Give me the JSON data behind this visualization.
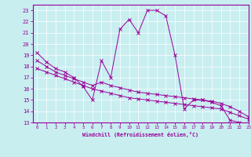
{
  "xlabel": "Windchill (Refroidissement éolien,°C)",
  "background_color": "#c8eef0",
  "line_color": "#990099",
  "grid_color": "#ffffff",
  "xlim": [
    -0.5,
    23
  ],
  "ylim": [
    13,
    23.5
  ],
  "yticks": [
    13,
    14,
    15,
    16,
    17,
    18,
    19,
    20,
    21,
    22,
    23
  ],
  "xticks": [
    0,
    1,
    2,
    3,
    4,
    5,
    6,
    7,
    8,
    9,
    10,
    11,
    12,
    13,
    14,
    15,
    16,
    17,
    18,
    19,
    20,
    21,
    22,
    23
  ],
  "series1_x": [
    0,
    1,
    2,
    3,
    4,
    5,
    6,
    7,
    8,
    9,
    10,
    11,
    12,
    13,
    14,
    15,
    16,
    17,
    18,
    19,
    20,
    21,
    22,
    23
  ],
  "series1_y": [
    19.2,
    18.4,
    17.8,
    17.5,
    17.0,
    16.2,
    15.0,
    18.5,
    17.0,
    21.3,
    22.2,
    21.0,
    23.0,
    23.0,
    22.5,
    19.0,
    14.2,
    15.0,
    15.0,
    14.8,
    14.5,
    13.2,
    13.0,
    12.8
  ],
  "series2_x": [
    0,
    1,
    2,
    3,
    4,
    5,
    6,
    7,
    8,
    9,
    10,
    11,
    12,
    13,
    14,
    15,
    16,
    17,
    18,
    19,
    20,
    21,
    22,
    23
  ],
  "series2_y": [
    18.5,
    18.0,
    17.5,
    17.2,
    16.9,
    16.6,
    16.3,
    16.6,
    16.3,
    16.1,
    15.9,
    15.7,
    15.6,
    15.5,
    15.4,
    15.3,
    15.2,
    15.1,
    15.0,
    14.9,
    14.7,
    14.4,
    14.0,
    13.5
  ],
  "series3_x": [
    0,
    1,
    2,
    3,
    4,
    5,
    6,
    7,
    8,
    9,
    10,
    11,
    12,
    13,
    14,
    15,
    16,
    17,
    18,
    19,
    20,
    21,
    22,
    23
  ],
  "series3_y": [
    17.8,
    17.5,
    17.2,
    16.9,
    16.6,
    16.3,
    16.0,
    15.8,
    15.6,
    15.4,
    15.2,
    15.1,
    15.0,
    14.9,
    14.8,
    14.7,
    14.6,
    14.5,
    14.4,
    14.3,
    14.2,
    13.9,
    13.6,
    13.3
  ]
}
